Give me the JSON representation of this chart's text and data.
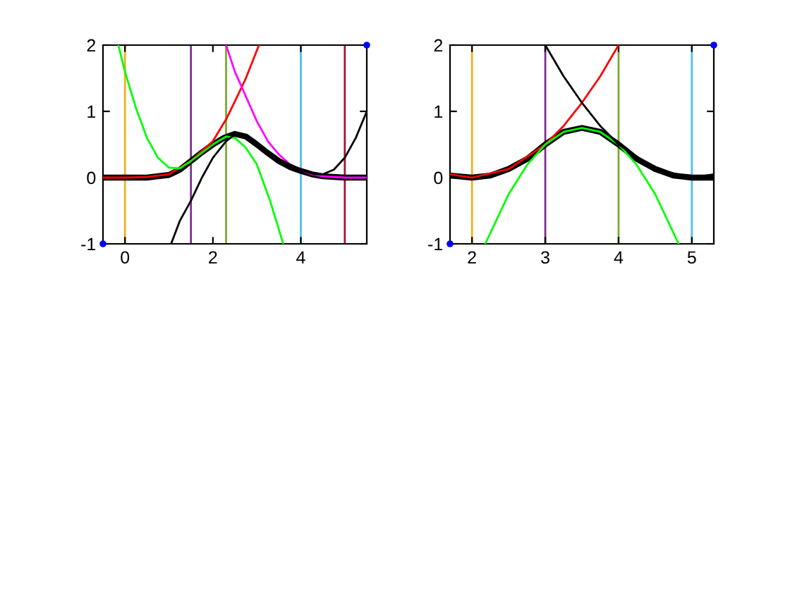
{
  "chart_data": [
    {
      "type": "line",
      "xlim": [
        -0.5,
        5.5
      ],
      "ylim": [
        -1,
        2
      ],
      "xticks": [
        0,
        2,
        4
      ],
      "yticks": [
        -1,
        0,
        1,
        2
      ],
      "grid": false,
      "legend": false,
      "ref_lines": [
        {
          "axis": "x",
          "value": 0,
          "color": "#edb120"
        },
        {
          "axis": "x",
          "value": 1.5,
          "color": "#7e2f8e"
        },
        {
          "axis": "x",
          "value": 2.3,
          "color": "#77ac30"
        },
        {
          "axis": "x",
          "value": 4,
          "color": "#4dbeee"
        },
        {
          "axis": "x",
          "value": 5,
          "color": "#a2142f"
        }
      ],
      "series": [
        {
          "color": "#000000",
          "x": [
            -0.5,
            0,
            0.5,
            1,
            1.25,
            1.5,
            1.75,
            2,
            2.25,
            2.5,
            2.75,
            3,
            3.25,
            3.5,
            3.75,
            4,
            4.25,
            4.5,
            5,
            5.5
          ],
          "values": [
            0,
            0,
            0,
            0.04,
            0.12,
            0.25,
            0.38,
            0.5,
            0.6,
            0.66,
            0.62,
            0.5,
            0.37,
            0.25,
            0.16,
            0.1,
            0.05,
            0.02,
            0,
            0
          ]
        },
        {
          "color": "#ff0000",
          "x": [
            -0.5,
            0,
            0.5,
            1,
            1.5,
            2,
            2.3,
            2.5,
            2.75,
            3,
            3.05
          ],
          "values": [
            0,
            0,
            0.01,
            0.05,
            0.25,
            0.55,
            0.88,
            1.15,
            1.5,
            1.92,
            2
          ]
        },
        {
          "color": "#00ff00",
          "x": [
            -0.15,
            0,
            0.25,
            0.5,
            0.75,
            1,
            1.25,
            1.5,
            2,
            2.3,
            2.5,
            2.75,
            3,
            3.3,
            3.6
          ],
          "values": [
            2,
            1.6,
            1.05,
            0.6,
            0.3,
            0.15,
            0.14,
            0.25,
            0.5,
            0.62,
            0.6,
            0.45,
            0.2,
            -0.35,
            -1
          ]
        },
        {
          "color": "#ff00ff",
          "x": [
            2.3,
            2.5,
            2.7,
            3,
            3.25,
            3.5,
            3.75,
            4,
            4.25,
            4.5,
            5,
            5.5
          ],
          "values": [
            2,
            1.6,
            1.3,
            0.85,
            0.55,
            0.35,
            0.2,
            0.12,
            0.05,
            0.02,
            0,
            0
          ]
        },
        {
          "color": "#000000",
          "x": [
            1.05,
            1.25,
            1.5,
            1.75,
            2,
            2.3,
            2.5,
            2.75,
            3,
            3.5,
            4,
            4.3,
            4.5,
            4.75,
            5,
            5.25,
            5.5
          ],
          "values": [
            -1,
            -0.65,
            -0.35,
            0,
            0.3,
            0.55,
            0.65,
            0.62,
            0.5,
            0.28,
            0.12,
            0.05,
            0.05,
            0.12,
            0.3,
            0.6,
            1.0
          ]
        },
        {
          "type": "scatter",
          "color": "#0000ff",
          "marker": "circle",
          "x": [
            -0.5,
            5.5
          ],
          "values": [
            -1,
            2
          ]
        }
      ]
    },
    {
      "type": "line",
      "xlim": [
        1.7,
        5.3
      ],
      "ylim": [
        -1,
        2
      ],
      "xticks": [
        2,
        3,
        4,
        5
      ],
      "yticks": [
        -1,
        0,
        1,
        2
      ],
      "grid": false,
      "legend": false,
      "ref_lines": [
        {
          "axis": "x",
          "value": 2,
          "color": "#edb120"
        },
        {
          "axis": "x",
          "value": 3,
          "color": "#7e2f8e"
        },
        {
          "axis": "x",
          "value": 4,
          "color": "#77ac30"
        },
        {
          "axis": "x",
          "value": 5,
          "color": "#4dbeee"
        }
      ],
      "series": [
        {
          "color": "#000000",
          "x": [
            1.7,
            2,
            2.25,
            2.5,
            2.75,
            3,
            3.25,
            3.5,
            3.75,
            4,
            4.25,
            4.5,
            4.75,
            5,
            5.3
          ],
          "values": [
            0.03,
            0,
            0.03,
            0.13,
            0.28,
            0.5,
            0.69,
            0.75,
            0.69,
            0.5,
            0.28,
            0.13,
            0.03,
            0,
            0
          ]
        },
        {
          "color": "#ff0000",
          "x": [
            1.7,
            2,
            2.5,
            3,
            3.25,
            3.5,
            3.75,
            4
          ],
          "values": [
            0.05,
            0,
            0.13,
            0.5,
            0.78,
            1.13,
            1.53,
            2
          ]
        },
        {
          "color": "#00ff00",
          "x": [
            2.18,
            2.5,
            2.75,
            3,
            3.25,
            3.5,
            3.75,
            4,
            4.25,
            4.5,
            4.82
          ],
          "values": [
            -1,
            -0.25,
            0.19,
            0.5,
            0.69,
            0.75,
            0.69,
            0.5,
            0.19,
            -0.25,
            -1
          ]
        },
        {
          "color": "#000000",
          "x": [
            3,
            3.25,
            3.5,
            3.75,
            4,
            4.5,
            5,
            5.3
          ],
          "values": [
            2,
            1.53,
            1.13,
            0.78,
            0.5,
            0.13,
            0,
            0.05
          ]
        },
        {
          "type": "scatter",
          "color": "#0000ff",
          "marker": "circle",
          "x": [
            1.7,
            5.3
          ],
          "values": [
            -1,
            2
          ]
        }
      ]
    }
  ]
}
